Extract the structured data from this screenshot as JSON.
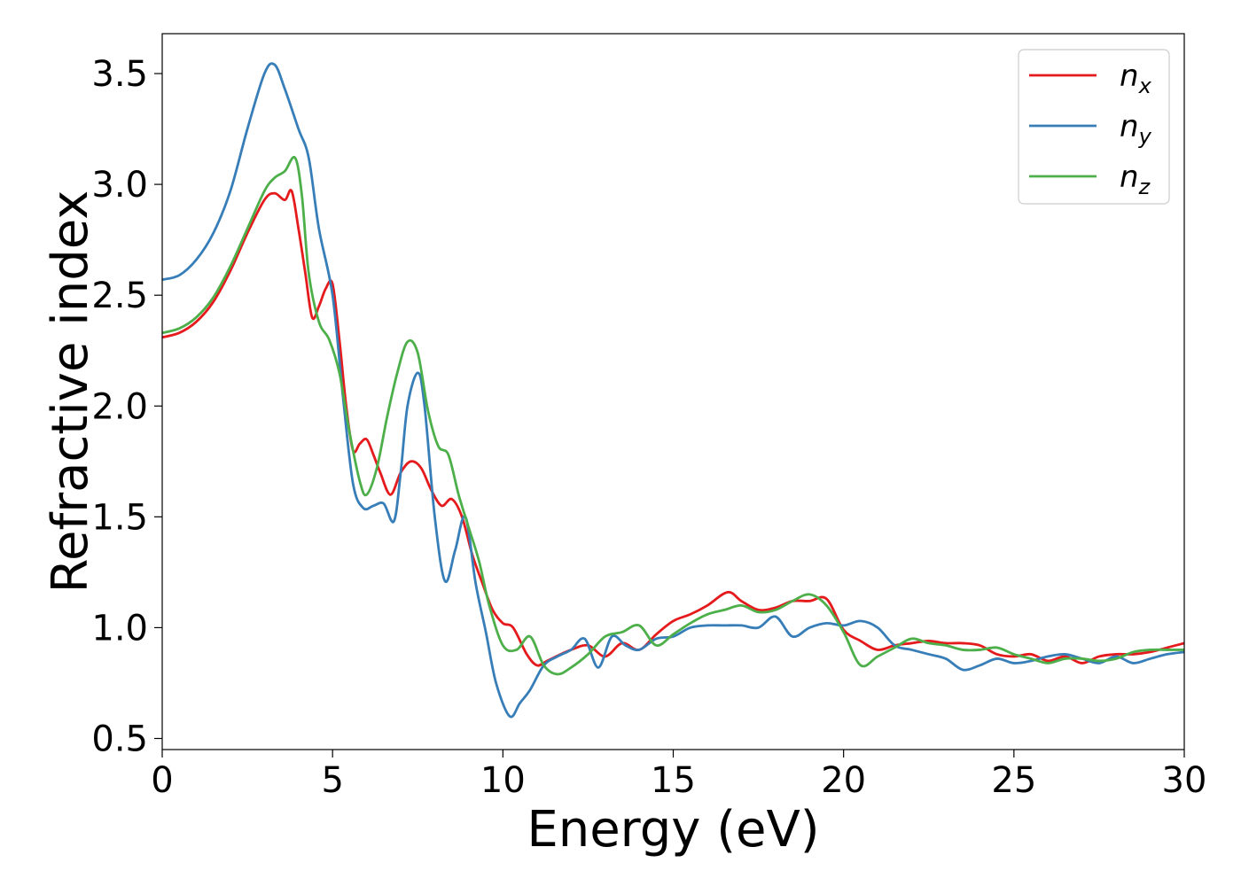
{
  "chart_data": {
    "type": "line",
    "xlabel": "Energy (eV)",
    "ylabel": "Refractive index",
    "xlim": [
      0,
      30
    ],
    "ylim": [
      0.45,
      3.68
    ],
    "xticks": [
      "0",
      "5",
      "10",
      "15",
      "20",
      "25",
      "30"
    ],
    "yticks": [
      "0.5",
      "1.0",
      "1.5",
      "2.0",
      "2.5",
      "3.0",
      "3.5"
    ],
    "grid": false,
    "legend_position": "top-right",
    "series": [
      {
        "name": "n_x",
        "label_main": "n",
        "label_sub": "x",
        "color": "#e41a1c",
        "x": [
          0,
          0.5,
          1.0,
          1.5,
          2.0,
          2.5,
          3.0,
          3.3,
          3.6,
          3.8,
          4.0,
          4.2,
          4.4,
          4.6,
          4.8,
          5.0,
          5.2,
          5.4,
          5.6,
          5.8,
          6.0,
          6.2,
          6.4,
          6.7,
          7.0,
          7.3,
          7.6,
          7.9,
          8.2,
          8.5,
          8.8,
          9.1,
          9.4,
          9.7,
          10.0,
          10.3,
          10.7,
          11.0,
          11.3,
          11.7,
          12.0,
          12.5,
          13.0,
          13.5,
          14.0,
          14.5,
          15.0,
          15.5,
          16.0,
          16.6,
          17.0,
          17.5,
          18.0,
          18.5,
          19.0,
          19.5,
          20.0,
          20.5,
          21.0,
          21.5,
          22.0,
          22.5,
          23.0,
          23.5,
          24.0,
          24.5,
          25.0,
          25.5,
          26.0,
          26.5,
          27.0,
          27.5,
          28.0,
          28.5,
          29.0,
          29.5,
          30.0
        ],
        "y": [
          2.31,
          2.33,
          2.38,
          2.47,
          2.61,
          2.78,
          2.93,
          2.96,
          2.93,
          2.97,
          2.8,
          2.6,
          2.4,
          2.45,
          2.53,
          2.55,
          2.3,
          2.0,
          1.8,
          1.83,
          1.85,
          1.78,
          1.7,
          1.6,
          1.7,
          1.75,
          1.72,
          1.62,
          1.55,
          1.58,
          1.5,
          1.33,
          1.2,
          1.08,
          1.02,
          1.0,
          0.88,
          0.83,
          0.85,
          0.88,
          0.9,
          0.92,
          0.87,
          0.93,
          0.9,
          0.97,
          1.03,
          1.06,
          1.1,
          1.16,
          1.12,
          1.08,
          1.09,
          1.12,
          1.12,
          1.13,
          0.99,
          0.94,
          0.9,
          0.92,
          0.93,
          0.94,
          0.93,
          0.93,
          0.92,
          0.88,
          0.87,
          0.88,
          0.85,
          0.87,
          0.84,
          0.87,
          0.88,
          0.88,
          0.89,
          0.91,
          0.93
        ]
      },
      {
        "name": "n_y",
        "label_main": "n",
        "label_sub": "y",
        "color": "#377eb8",
        "x": [
          0,
          0.5,
          1.0,
          1.5,
          2.0,
          2.5,
          3.0,
          3.3,
          3.6,
          4.0,
          4.3,
          4.6,
          5.0,
          5.3,
          5.6,
          5.9,
          6.2,
          6.5,
          6.8,
          7.0,
          7.2,
          7.5,
          7.7,
          8.0,
          8.3,
          8.6,
          8.9,
          9.2,
          9.5,
          9.8,
          10.2,
          10.5,
          10.8,
          11.2,
          11.6,
          12.0,
          12.4,
          12.8,
          13.2,
          13.6,
          14.0,
          14.5,
          15.0,
          15.5,
          16.0,
          16.5,
          17.0,
          17.5,
          18.0,
          18.5,
          19.0,
          19.5,
          20.0,
          20.5,
          21.0,
          21.5,
          22.0,
          22.5,
          23.0,
          23.5,
          24.0,
          24.5,
          25.0,
          25.5,
          26.0,
          26.5,
          27.0,
          27.5,
          28.0,
          28.5,
          29.0,
          29.5,
          30.0
        ],
        "y": [
          2.57,
          2.59,
          2.66,
          2.78,
          2.97,
          3.25,
          3.5,
          3.54,
          3.43,
          3.25,
          3.12,
          2.8,
          2.5,
          2.05,
          1.65,
          1.54,
          1.55,
          1.56,
          1.48,
          1.7,
          2.0,
          2.15,
          2.0,
          1.5,
          1.21,
          1.35,
          1.5,
          1.2,
          0.98,
          0.75,
          0.6,
          0.66,
          0.72,
          0.83,
          0.87,
          0.9,
          0.95,
          0.82,
          0.96,
          0.92,
          0.9,
          0.95,
          0.96,
          1.0,
          1.01,
          1.01,
          1.01,
          1.0,
          1.05,
          0.96,
          1.0,
          1.02,
          1.01,
          1.03,
          1.0,
          0.92,
          0.9,
          0.88,
          0.86,
          0.81,
          0.83,
          0.86,
          0.84,
          0.85,
          0.87,
          0.88,
          0.86,
          0.84,
          0.87,
          0.84,
          0.86,
          0.88,
          0.89
        ]
      },
      {
        "name": "n_z",
        "label_main": "n",
        "label_sub": "z",
        "color": "#4daf4a",
        "x": [
          0,
          0.5,
          1.0,
          1.5,
          2.0,
          2.5,
          3.0,
          3.3,
          3.6,
          3.9,
          4.1,
          4.3,
          4.6,
          4.9,
          5.2,
          5.5,
          5.8,
          6.0,
          6.3,
          6.6,
          6.9,
          7.2,
          7.5,
          7.8,
          8.1,
          8.4,
          8.7,
          9.0,
          9.3,
          9.6,
          10.0,
          10.4,
          10.8,
          11.2,
          11.6,
          12.0,
          12.5,
          13.0,
          13.5,
          14.0,
          14.5,
          15.0,
          15.5,
          16.0,
          16.5,
          17.0,
          17.5,
          18.0,
          18.5,
          19.0,
          19.5,
          20.0,
          20.5,
          21.0,
          21.5,
          22.0,
          22.5,
          23.0,
          23.5,
          24.0,
          24.5,
          25.0,
          25.5,
          26.0,
          26.5,
          27.0,
          27.5,
          28.0,
          28.5,
          29.0,
          29.5,
          30.0
        ],
        "y": [
          2.33,
          2.35,
          2.4,
          2.49,
          2.63,
          2.8,
          2.97,
          3.03,
          3.06,
          3.12,
          2.95,
          2.6,
          2.38,
          2.3,
          2.15,
          1.88,
          1.66,
          1.6,
          1.72,
          1.95,
          2.15,
          2.29,
          2.24,
          1.98,
          1.82,
          1.78,
          1.6,
          1.45,
          1.3,
          1.1,
          0.92,
          0.9,
          0.96,
          0.83,
          0.79,
          0.82,
          0.88,
          0.96,
          0.98,
          1.01,
          0.92,
          0.97,
          1.02,
          1.06,
          1.08,
          1.1,
          1.07,
          1.08,
          1.12,
          1.15,
          1.1,
          0.98,
          0.83,
          0.87,
          0.91,
          0.95,
          0.93,
          0.92,
          0.9,
          0.9,
          0.91,
          0.88,
          0.86,
          0.84,
          0.86,
          0.86,
          0.85,
          0.86,
          0.89,
          0.9,
          0.9,
          0.9
        ]
      }
    ]
  }
}
